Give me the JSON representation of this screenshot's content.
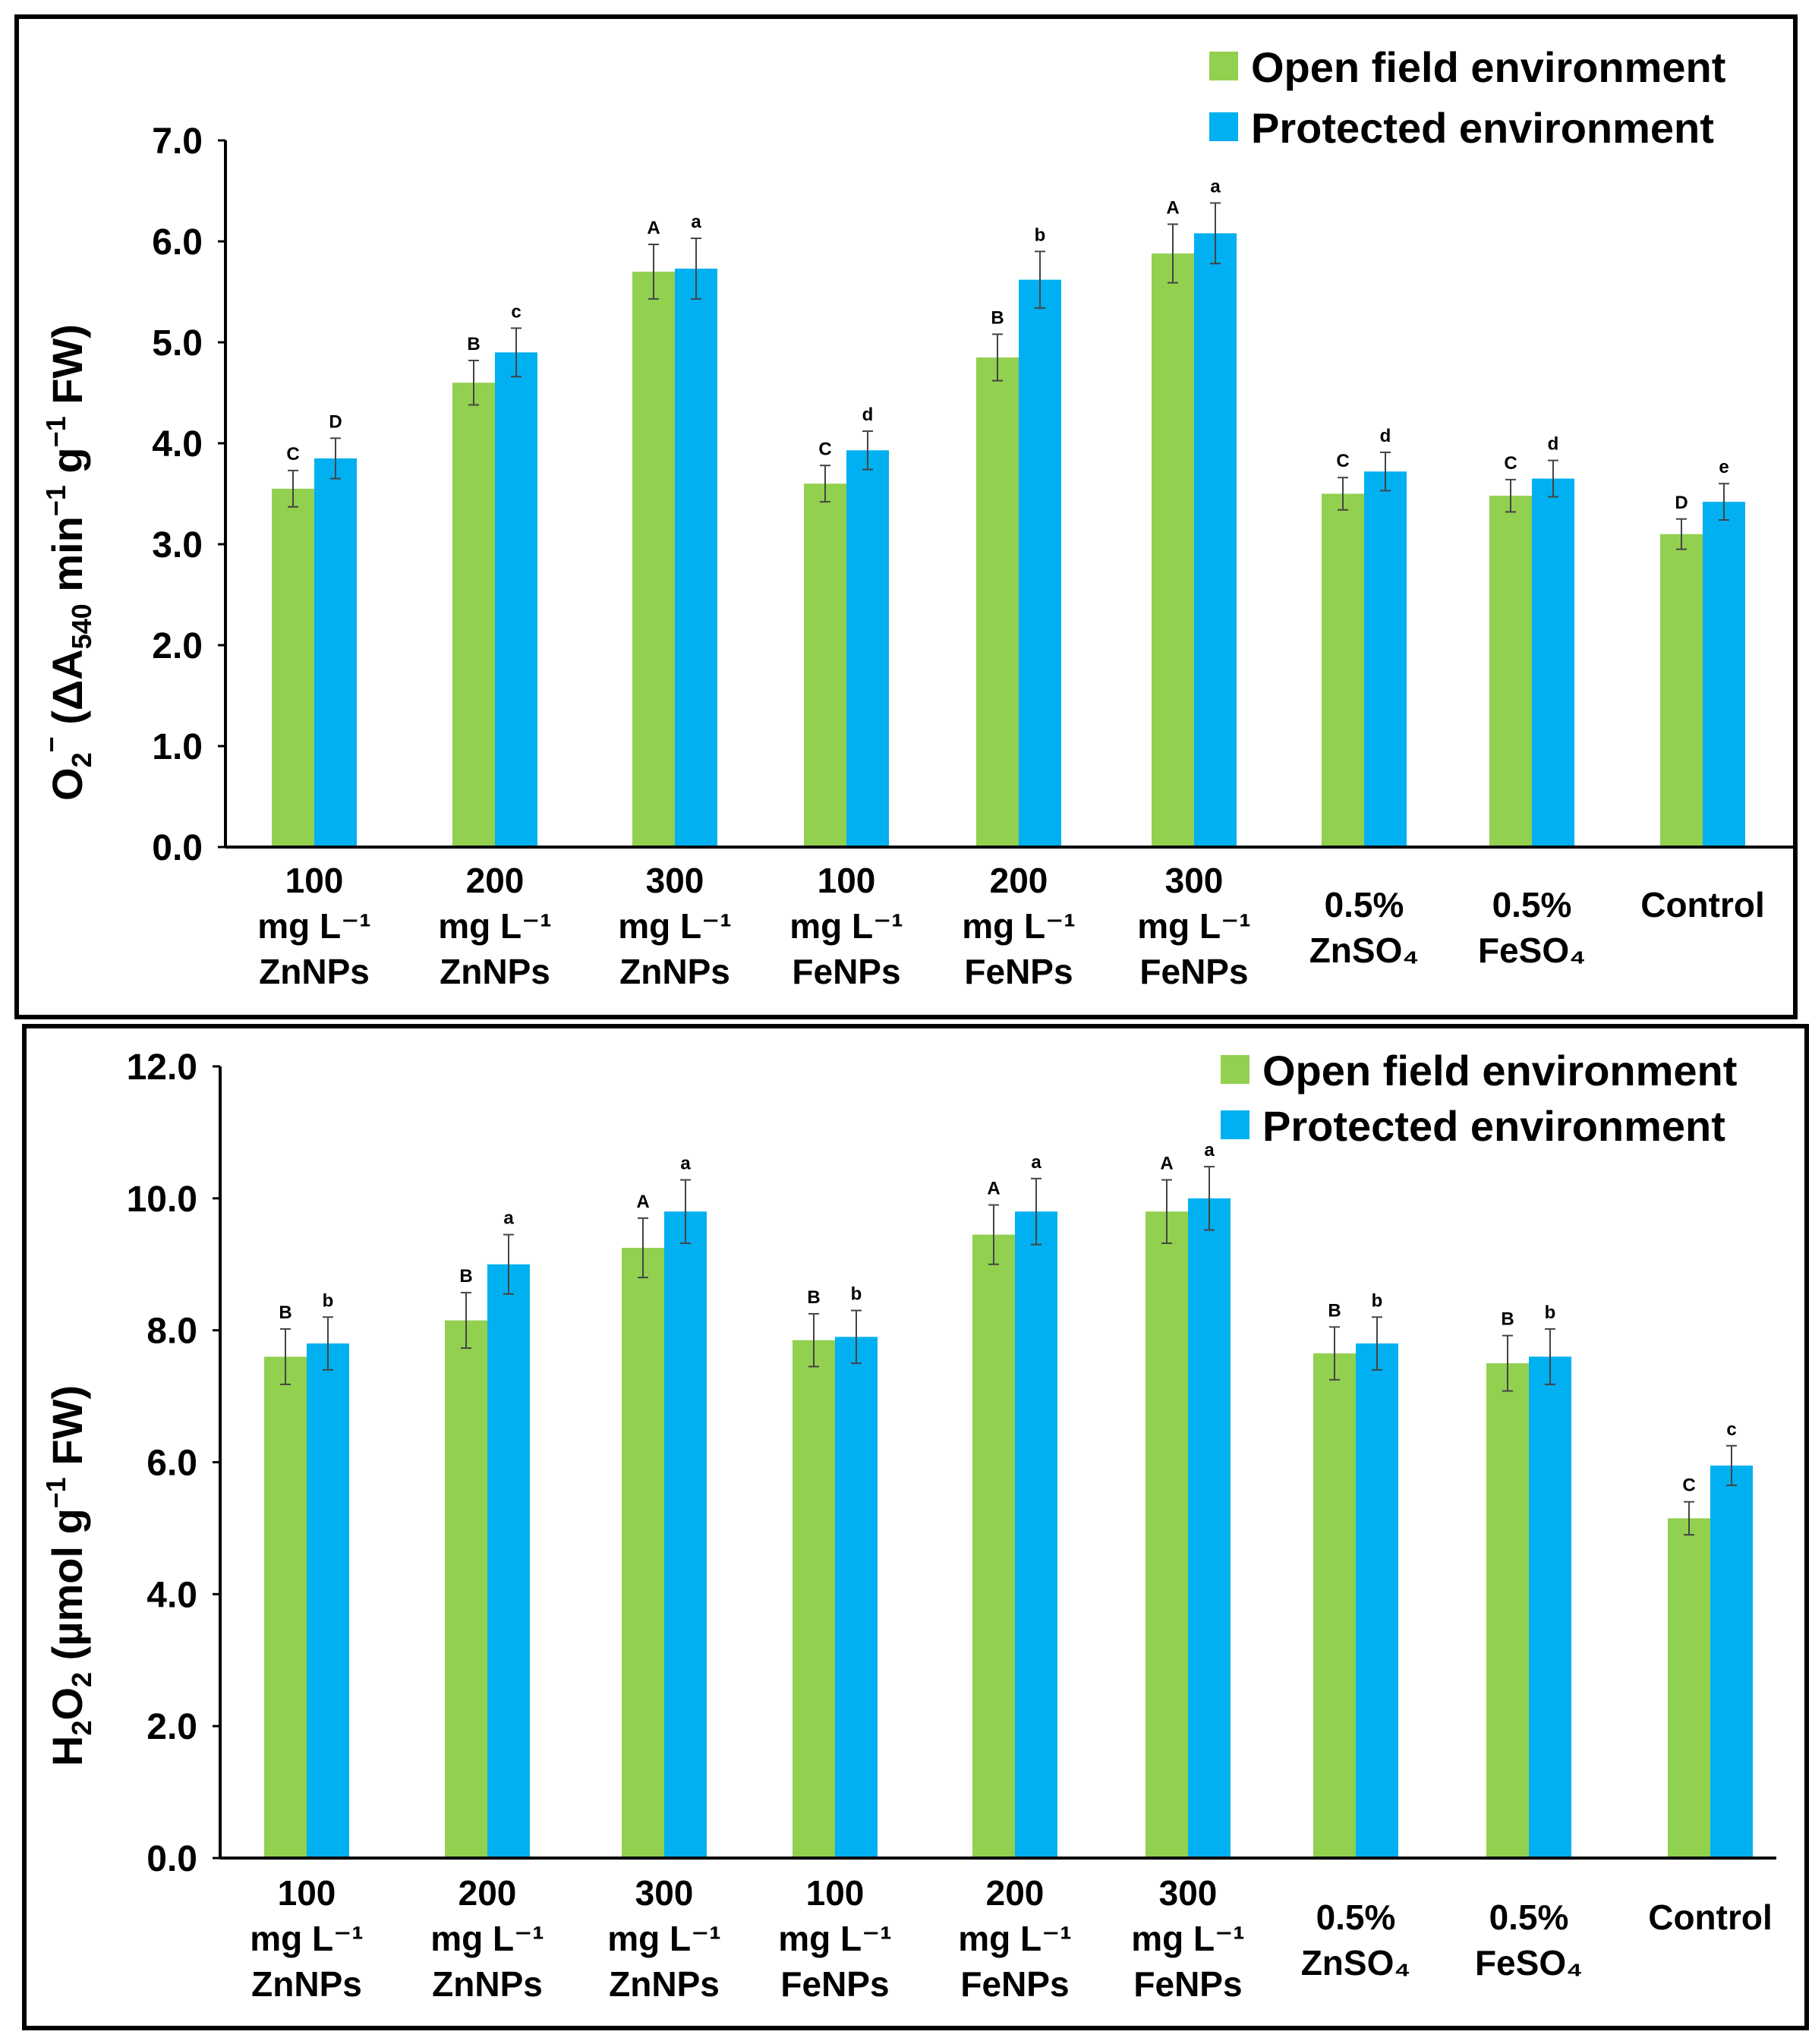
{
  "colors": {
    "open": "#92D050",
    "protected": "#00B0F0",
    "axis": "#000000",
    "frame": "#000000"
  },
  "legend": {
    "open": "Open field environment",
    "protected": "Protected environment"
  },
  "categories": [
    [
      "100",
      "mg L⁻¹",
      "ZnNPs"
    ],
    [
      "200",
      "mg L⁻¹",
      "ZnNPs"
    ],
    [
      "300",
      "mg L⁻¹",
      "ZnNPs"
    ],
    [
      "100",
      "mg L⁻¹",
      "FeNPs"
    ],
    [
      "200",
      "mg L⁻¹",
      "FeNPs"
    ],
    [
      "300",
      "mg L⁻¹",
      "FeNPs"
    ],
    [
      "0.5%",
      "ZnSO₄"
    ],
    [
      "0.5%",
      "FeSO₄"
    ],
    [
      "Control"
    ]
  ],
  "chart_data": [
    {
      "type": "bar",
      "ylabel": "O₂⁻ (ΔA₅₄₀ min⁻¹ g⁻¹ FW)",
      "ylim": [
        0,
        7
      ],
      "yticks": [
        "0.0",
        "1.0",
        "2.0",
        "3.0",
        "4.0",
        "5.0",
        "6.0",
        "7.0"
      ],
      "legend_position": "top-right",
      "series": [
        {
          "name": "Open field environment",
          "values": [
            3.55,
            4.6,
            5.7,
            3.6,
            4.85,
            5.88,
            3.5,
            3.48,
            3.1
          ],
          "errors": [
            0.18,
            0.22,
            0.27,
            0.18,
            0.23,
            0.29,
            0.16,
            0.16,
            0.15
          ],
          "labels": [
            "C",
            "B",
            "A",
            "C",
            "B",
            "A",
            "C",
            "C",
            "D"
          ]
        },
        {
          "name": "Protected environment",
          "values": [
            3.85,
            4.9,
            5.73,
            3.93,
            5.62,
            6.08,
            3.72,
            3.65,
            3.42
          ],
          "errors": [
            0.2,
            0.24,
            0.3,
            0.19,
            0.28,
            0.3,
            0.19,
            0.18,
            0.18
          ],
          "labels": [
            "D",
            "c",
            "a",
            "d",
            "b",
            "a",
            "d",
            "d",
            "e"
          ]
        }
      ]
    },
    {
      "type": "bar",
      "ylabel": "H₂O₂ (µmol g⁻¹ FW)",
      "ylim": [
        0,
        12
      ],
      "yticks": [
        "0.0",
        "2.0",
        "4.0",
        "6.0",
        "8.0",
        "10.0",
        "12.0"
      ],
      "legend_position": "top-right",
      "series": [
        {
          "name": "Open field environment",
          "values": [
            7.6,
            8.15,
            9.25,
            7.85,
            9.45,
            9.8,
            7.65,
            7.5,
            5.15
          ],
          "errors": [
            0.42,
            0.42,
            0.45,
            0.4,
            0.45,
            0.48,
            0.4,
            0.42,
            0.25
          ],
          "labels": [
            "B",
            "B",
            "A",
            "B",
            "A",
            "A",
            "B",
            "B",
            "C"
          ]
        },
        {
          "name": "Protected environment",
          "values": [
            7.8,
            9.0,
            9.8,
            7.9,
            9.8,
            10.0,
            7.8,
            7.6,
            5.95
          ],
          "errors": [
            0.4,
            0.45,
            0.48,
            0.4,
            0.5,
            0.48,
            0.4,
            0.42,
            0.3
          ],
          "labels": [
            "b",
            "a",
            "a",
            "b",
            "a",
            "a",
            "b",
            "b",
            "c"
          ]
        }
      ]
    }
  ]
}
